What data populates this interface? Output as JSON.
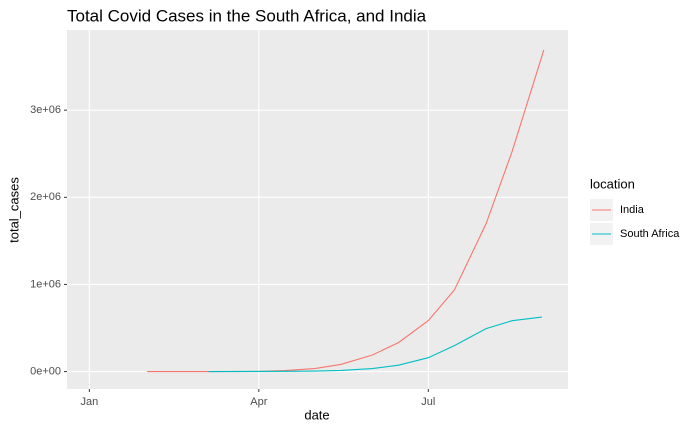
{
  "chart_data": {
    "type": "line",
    "title": "Total Covid Cases in the South Africa, and India",
    "x_label": "date",
    "y_label": "total_cases",
    "legend_title": "location",
    "x": [
      31,
      60,
      64,
      91,
      105,
      121,
      135,
      152,
      166,
      182,
      196,
      213,
      227,
      243,
      244
    ],
    "series": [
      {
        "name": "India",
        "color": "#F8766D",
        "values": [
          1,
          3,
          28,
          1998,
          11933,
          35043,
          81970,
          190535,
          332424,
          585493,
          936181,
          1695988,
          2526192,
          3621245,
          3691166
        ]
      },
      {
        "name": "South Africa",
        "color": "#00BFC4",
        "values": [
          null,
          null,
          1,
          1380,
          2415,
          5647,
          12739,
          34357,
          73533,
          159333,
          298292,
          493183,
          583653,
          625056,
          null
        ]
      }
    ],
    "xlim": [
      -12,
      257
    ],
    "xticks": [
      {
        "value": 0,
        "label": "Jan"
      },
      {
        "value": 91,
        "label": "Apr"
      },
      {
        "value": 182,
        "label": "Jul"
      }
    ],
    "ylim": [
      -200000,
      3920000
    ],
    "yticks": [
      {
        "value": 0,
        "label": "0e+00"
      },
      {
        "value": 1000000,
        "label": "1e+06"
      },
      {
        "value": 2000000,
        "label": "2e+06"
      },
      {
        "value": 3000000,
        "label": "3e+06"
      }
    ],
    "grid": true,
    "legend_position": "right"
  }
}
